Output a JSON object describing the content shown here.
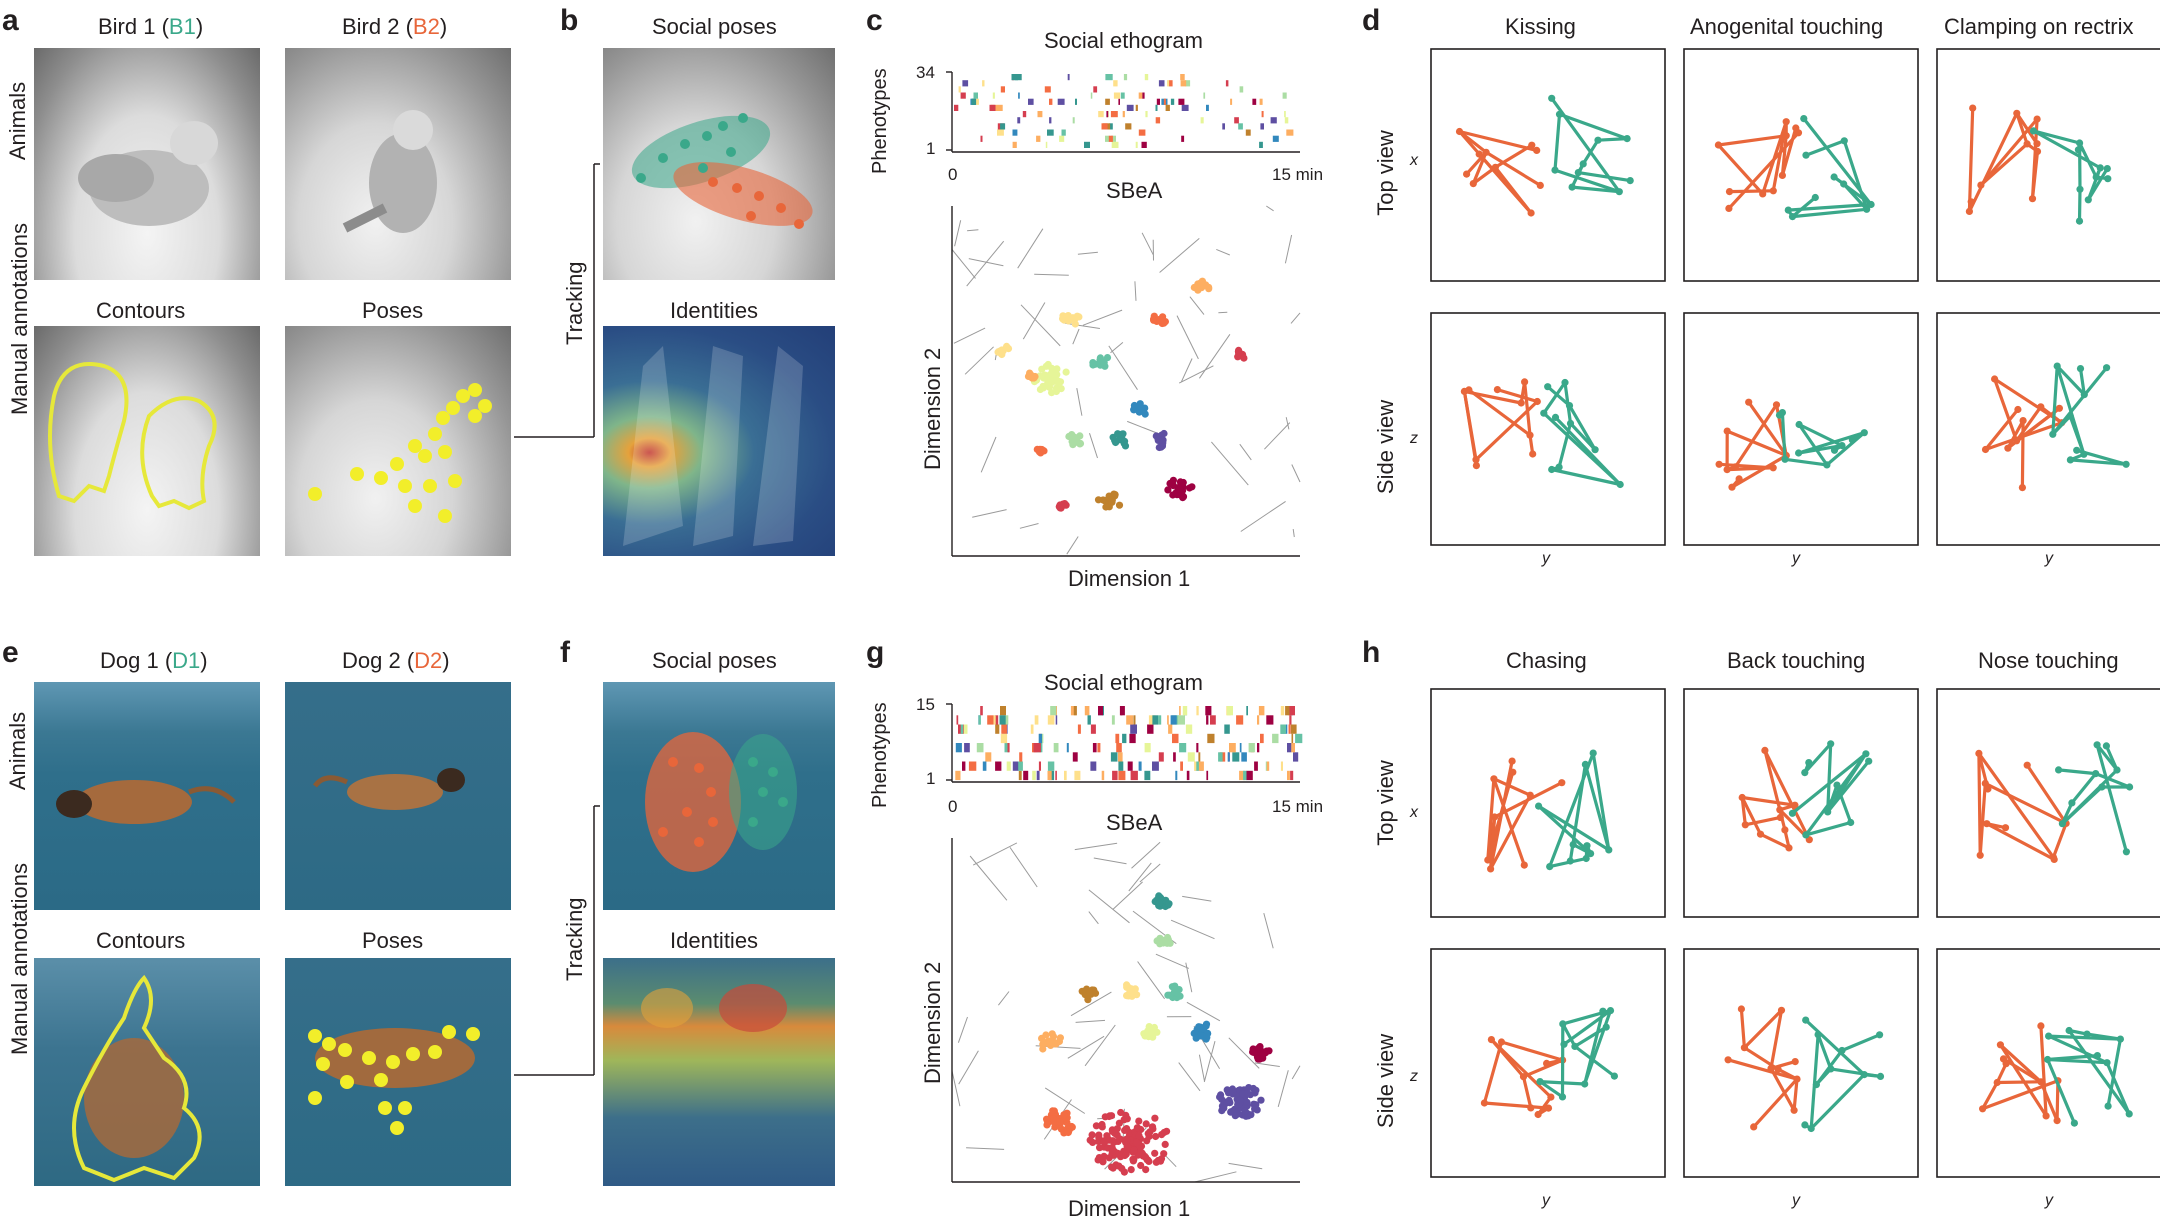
{
  "panels": {
    "a": {
      "letter": "a",
      "bird1_prefix": "Bird 1 (",
      "bird1_code": "B1",
      "bird2_prefix": "Bird 2 (",
      "bird2_code": "B2",
      "suffix": ")",
      "row_top": "Animals",
      "row_bottom": "Manual annotations",
      "contours": "Contours",
      "poses": "Poses"
    },
    "b": {
      "letter": "b",
      "social_poses": "Social poses",
      "identities": "Identities",
      "tracking": "Tracking"
    },
    "c": {
      "letter": "c",
      "ethogram_title": "Social ethogram",
      "y_axis": "Phenotypes",
      "y_max": "34",
      "y_min": "1",
      "x_min": "0",
      "x_max": "15 min",
      "map_title": "SBeA",
      "dim1": "Dimension 1",
      "dim2": "Dimension 2"
    },
    "d": {
      "letter": "d",
      "titles": [
        "Kissing",
        "Anogenital touching",
        "Clamping on rectrix"
      ],
      "top_view": "Top view",
      "side_view": "Side view",
      "x": "x",
      "y": "y",
      "z": "z"
    },
    "e": {
      "letter": "e",
      "dog1_prefix": "Dog 1 (",
      "dog1_code": "D1",
      "dog2_prefix": "Dog 2 (",
      "dog2_code": "D2",
      "suffix": ")",
      "row_top": "Animals",
      "row_bottom": "Manual annotations",
      "contours": "Contours",
      "poses": "Poses"
    },
    "f": {
      "letter": "f",
      "social_poses": "Social poses",
      "identities": "Identities",
      "tracking": "Tracking"
    },
    "g": {
      "letter": "g",
      "ethogram_title": "Social ethogram",
      "y_axis": "Phenotypes",
      "y_max": "15",
      "y_min": "1",
      "x_min": "0",
      "x_max": "15 min",
      "map_title": "SBeA",
      "dim1": "Dimension 1",
      "dim2": "Dimension 2"
    },
    "h": {
      "letter": "h",
      "titles": [
        "Chasing",
        "Back touching",
        "Nose touching"
      ],
      "top_view": "Top view",
      "side_view": "Side view",
      "x": "x",
      "y": "y",
      "z": "z"
    }
  },
  "colors": {
    "animal1": "#3aa88a",
    "animal2": "#e8663a",
    "keypoint": "#f2ee2a",
    "contour": "#e6e83a",
    "axis": "#231f20",
    "region_line": "#9a9a9a"
  }
}
